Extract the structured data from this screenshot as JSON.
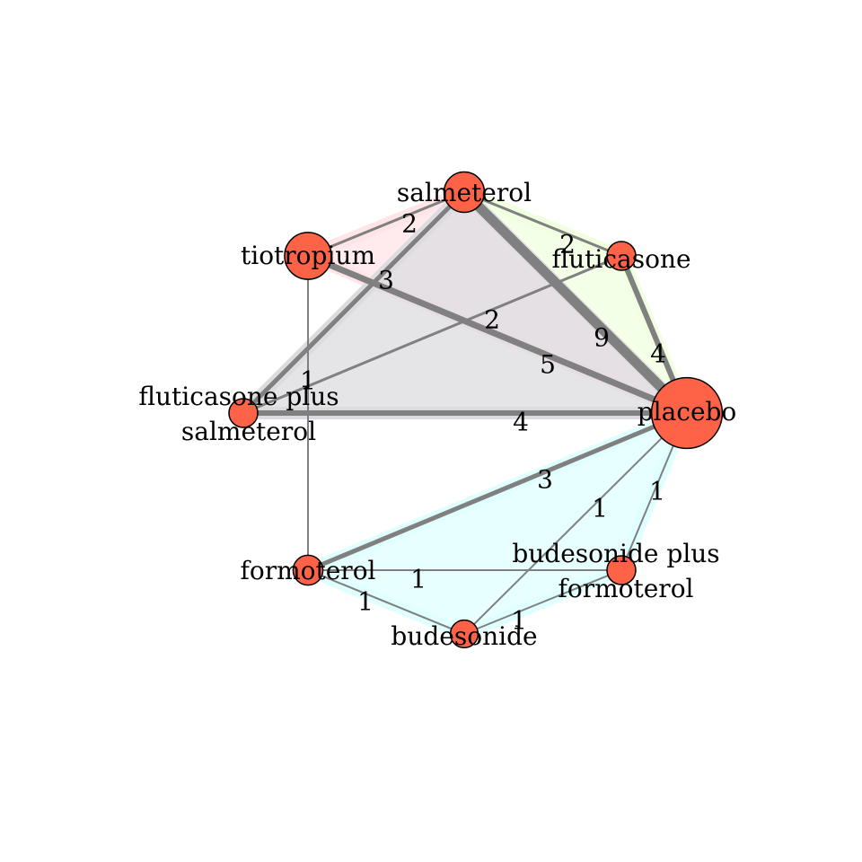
{
  "colors": {
    "node_fill": "#ff6347",
    "node_stroke": "#000000",
    "edge": "#808080",
    "multi_arm_fills": [
      "#ffe4e8",
      "#f0ffe0",
      "#dcdce0",
      "#e0ffff"
    ]
  },
  "nodes": [
    {
      "id": "salmeterol",
      "label_lines": [
        "salmeterol"
      ],
      "size": 2
    },
    {
      "id": "fluticasone",
      "label_lines": [
        "fluticasone"
      ],
      "size": 1
    },
    {
      "id": "placebo",
      "label_lines": [
        "placebo"
      ],
      "size": 5
    },
    {
      "id": "bud_form",
      "label_lines": [
        "budesonide plus",
        "formoterol"
      ],
      "size": 1
    },
    {
      "id": "budesonide",
      "label_lines": [
        "budesonide"
      ],
      "size": 0.8
    },
    {
      "id": "formoterol",
      "label_lines": [
        "formoterol"
      ],
      "size": 1.2
    },
    {
      "id": "flu_salm",
      "label_lines": [
        "fluticasone plus",
        "salmeterol"
      ],
      "size": 1
    },
    {
      "id": "tiotropium",
      "label_lines": [
        "tiotropium"
      ],
      "size": 2.6
    }
  ],
  "edges": [
    {
      "from": "salmeterol",
      "to": "placebo",
      "n": "9"
    },
    {
      "from": "fluticasone",
      "to": "placebo",
      "n": "4"
    },
    {
      "from": "salmeterol",
      "to": "fluticasone",
      "n": "2"
    },
    {
      "from": "tiotropium",
      "to": "salmeterol",
      "n": "2"
    },
    {
      "from": "tiotropium",
      "to": "placebo",
      "n": "5"
    },
    {
      "from": "flu_salm",
      "to": "placebo",
      "n": "4"
    },
    {
      "from": "flu_salm",
      "to": "salmeterol",
      "n": "3"
    },
    {
      "from": "flu_salm",
      "to": "fluticasone",
      "n": "2"
    },
    {
      "from": "tiotropium",
      "to": "formoterol",
      "n": "1"
    },
    {
      "from": "formoterol",
      "to": "placebo",
      "n": "3"
    },
    {
      "from": "formoterol",
      "to": "bud_form",
      "n": "1"
    },
    {
      "from": "formoterol",
      "to": "budesonide",
      "n": "1"
    },
    {
      "from": "budesonide",
      "to": "bud_form",
      "n": "1"
    },
    {
      "from": "budesonide",
      "to": "placebo",
      "n": "1"
    },
    {
      "from": "bud_form",
      "to": "placebo",
      "n": "1"
    }
  ],
  "multi_arm_groups": [
    [
      "tiotropium",
      "salmeterol",
      "placebo"
    ],
    [
      "salmeterol",
      "fluticasone",
      "placebo"
    ],
    [
      "flu_salm",
      "salmeterol",
      "placebo"
    ],
    [
      "formoterol",
      "placebo",
      "bud_form",
      "budesonide"
    ]
  ]
}
